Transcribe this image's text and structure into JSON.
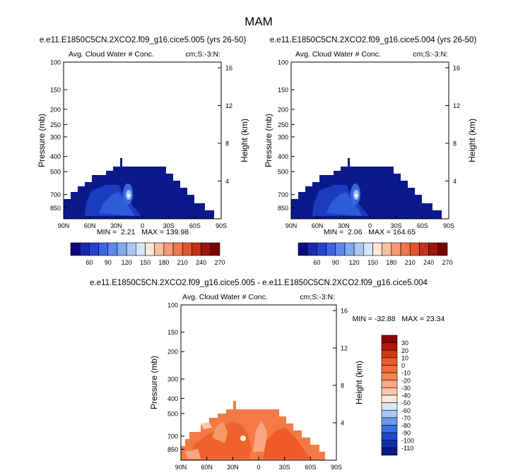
{
  "page": {
    "title": "MAM"
  },
  "scale_upper": {
    "labels": [
      "60",
      "90",
      "120",
      "150",
      "180",
      "210",
      "240",
      "270"
    ],
    "colors": [
      "#0a0a80",
      "#1a2ab0",
      "#2244d0",
      "#3b66e0",
      "#5c88ec",
      "#82aaf2",
      "#aac8f6",
      "#d6e6fa",
      "#fde6d6",
      "#f9c0a2",
      "#f49a74",
      "#ef7650",
      "#e05530",
      "#c43218",
      "#a0140c",
      "#7a0000"
    ]
  },
  "scale_diff": {
    "labels": [
      "30",
      "20",
      "10",
      "0",
      "-10",
      "-20",
      "-30",
      "-40",
      "-50",
      "-60",
      "-70",
      "-80",
      "-90",
      "-100",
      "-110"
    ],
    "colors": [
      "#8b0000",
      "#b0180a",
      "#d03a18",
      "#f05a28",
      "#f46a38",
      "#f6864e",
      "#f9a682",
      "#fcc6ae",
      "#fde8dc",
      "#d8e8f8",
      "#a8c8f0",
      "#6a9ae8",
      "#3a6ee0",
      "#1c4ad0",
      "#1030b0",
      "#0a1a88"
    ]
  },
  "chart_data": [
    {
      "type": "heatmap",
      "title": "e.e11.E1850C5CN.2XCO2.f09_g16.cice5.005 (yrs 26-50)",
      "subtitle_left": "Avg. Cloud Water # Conc.",
      "subtitle_right": "cm;S:-3:N:",
      "xlabel": "",
      "ylabel": "Pressure (mb)",
      "y2label": "Height (km)",
      "xticks": [
        "90N",
        "60N",
        "30N",
        "0",
        "30S",
        "60S",
        "90S"
      ],
      "yticks": [
        "100",
        "150",
        "200",
        "250",
        "300",
        "400",
        "500",
        "700",
        "850"
      ],
      "yticks_right": [
        "16",
        "12",
        "8",
        "4"
      ],
      "stats": "MIN =  2.21   MAX = 139.98",
      "min": 2.21,
      "max": 139.98,
      "xlim": [
        90,
        -90
      ],
      "ylim": [
        1000,
        100
      ]
    },
    {
      "type": "heatmap",
      "title": "e.e11.E1850C5CN.2XCO2.f09_g16.cice5.004 (yrs 26-50)",
      "subtitle_left": "Avg. Cloud Water # Conc.",
      "subtitle_right": "cm;S:-3:N:",
      "xlabel": "",
      "ylabel": "Pressure (mb)",
      "y2label": "Height (km)",
      "xticks": [
        "90N",
        "60N",
        "30N",
        "0",
        "30S",
        "60S",
        "90S"
      ],
      "yticks": [
        "100",
        "150",
        "200",
        "250",
        "300",
        "400",
        "500",
        "700",
        "850"
      ],
      "yticks_right": [
        "16",
        "12",
        "8",
        "4"
      ],
      "stats": "MIN =  2.06   MAX = 164.65",
      "min": 2.06,
      "max": 164.65,
      "xlim": [
        90,
        -90
      ],
      "ylim": [
        1000,
        100
      ]
    },
    {
      "type": "heatmap",
      "title": "e.e11.E1850C5CN.2XCO2.f09_g16.cice5.005 - e.e11.E1850C5CN.2XCO2.f09_g16.cice5.004",
      "subtitle_left": "Avg. Cloud Water # Conc.",
      "subtitle_right": "cm;S:-3:N:",
      "xlabel": "",
      "ylabel": "Pressure (mb)",
      "y2label": "Height (km)",
      "xticks": [
        "90N",
        "60N",
        "30N",
        "0",
        "30S",
        "60S",
        "90S"
      ],
      "yticks": [
        "100",
        "150",
        "200",
        "300",
        "400",
        "500",
        "700",
        "850"
      ],
      "yticks_right": [
        "16",
        "12",
        "8",
        "4"
      ],
      "stats": "MIN = -32.88   MAX = 23.34",
      "min": -32.88,
      "max": 23.34,
      "xlim": [
        90,
        -90
      ],
      "ylim": [
        1000,
        100
      ]
    }
  ]
}
